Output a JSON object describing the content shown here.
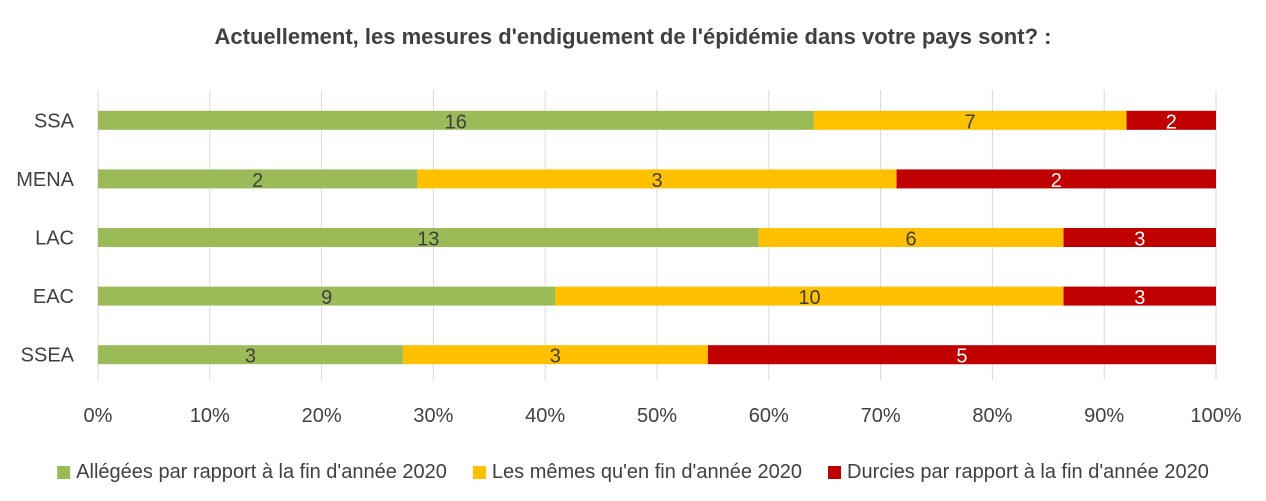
{
  "chart_data": {
    "type": "bar",
    "orientation": "horizontal",
    "stacked": "percent",
    "title": "Actuellement, les mesures d'endiguement de l'épidémie dans votre pays sont? :",
    "categories": [
      "SSA",
      "MENA",
      "LAC",
      "EAC",
      "SSEA"
    ],
    "series": [
      {
        "name": "Allégées par rapport à la fin d'année 2020",
        "color": "#9BBB59",
        "label_color": "#404040",
        "values": [
          16,
          2,
          13,
          9,
          3
        ]
      },
      {
        "name": "Les mêmes qu'en fin d'année 2020",
        "color": "#FFC000",
        "label_color": "#404040",
        "values": [
          7,
          3,
          6,
          10,
          3
        ]
      },
      {
        "name": "Durcies par rapport à la fin d'année 2020",
        "color": "#C00000",
        "label_color": "#FFFFFF",
        "values": [
          2,
          2,
          3,
          3,
          5
        ]
      }
    ],
    "x_ticks": [
      "0%",
      "10%",
      "20%",
      "30%",
      "40%",
      "50%",
      "60%",
      "70%",
      "80%",
      "90%",
      "100%"
    ],
    "xlim": [
      0,
      100
    ],
    "grid": true,
    "legend": "bottom"
  }
}
